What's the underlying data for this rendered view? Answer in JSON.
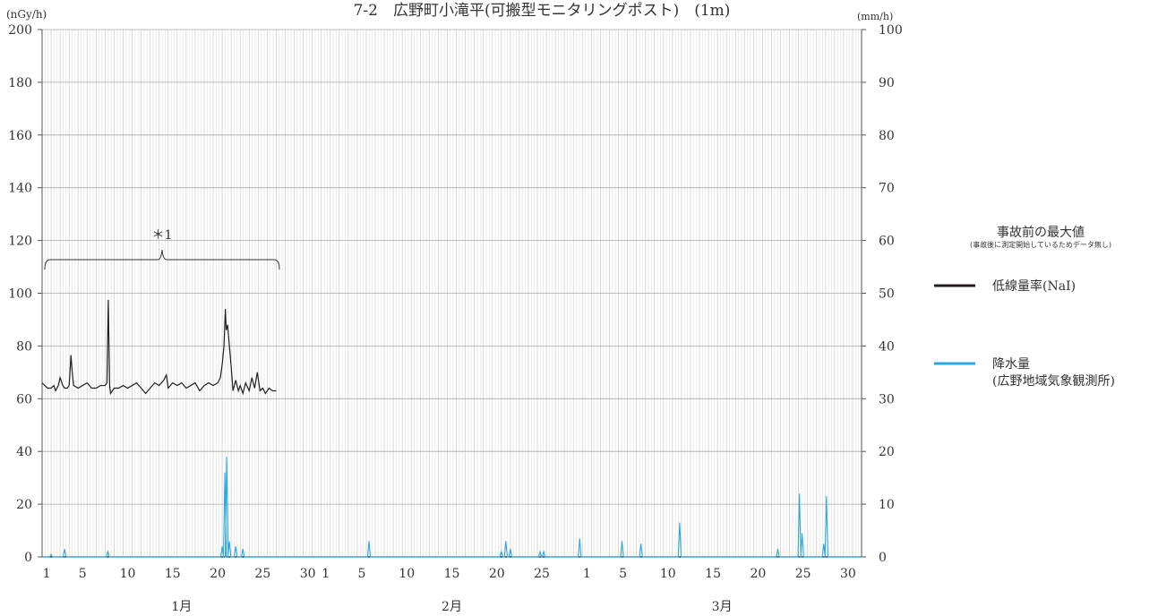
{
  "chart_data": {
    "type": "line",
    "title": "7-2　広野町小滝平(可搬型モニタリングポスト)　(1m)",
    "y_left_unit": "(nGy/h)",
    "y_right_unit": "(mm/h)",
    "y_left_ticks": [
      "0",
      "20",
      "40",
      "60",
      "80",
      "100",
      "120",
      "140",
      "160",
      "180",
      "200"
    ],
    "y_right_ticks": [
      "0",
      "10",
      "20",
      "30",
      "40",
      "50",
      "60",
      "70",
      "80",
      "90",
      "100"
    ],
    "ylim_left": [
      0,
      200
    ],
    "ylim_right": [
      0,
      100
    ],
    "months": [
      {
        "label": "1月",
        "days": 31,
        "tick_labels": [
          "1",
          "5",
          "10",
          "15",
          "20",
          "25",
          "30"
        ]
      },
      {
        "label": "2月",
        "days": 29,
        "tick_labels": [
          "1",
          "5",
          "10",
          "15",
          "20",
          "25"
        ]
      },
      {
        "label": "3月",
        "days": 31,
        "tick_labels": [
          "1",
          "5",
          "10",
          "15",
          "20",
          "25",
          "30"
        ]
      }
    ],
    "annotation": "＊1",
    "legend": {
      "heading": "事故前の最大値",
      "subheading": "(事故後に測定開始しているためデータ無し)",
      "items": [
        {
          "label": "低線量率(NaI)",
          "color": "#231f20"
        },
        {
          "label": "降水量\n(広野地域気象観測所)",
          "color": "#29a8e0"
        }
      ]
    },
    "series": [
      {
        "name": "低線量率(NaI)",
        "axis": "left",
        "color": "#231f20",
        "points": [
          [
            0,
            66
          ],
          [
            0.3,
            65
          ],
          [
            0.6,
            64
          ],
          [
            1,
            64
          ],
          [
            1.3,
            65
          ],
          [
            1.5,
            63
          ],
          [
            1.8,
            65
          ],
          [
            2.0,
            68
          ],
          [
            2.3,
            65
          ],
          [
            2.5,
            64
          ],
          [
            2.8,
            64
          ],
          [
            3.0,
            65
          ],
          [
            3.1,
            70
          ],
          [
            3.2,
            76.5
          ],
          [
            3.35,
            70
          ],
          [
            3.5,
            65
          ],
          [
            4,
            64
          ],
          [
            4.5,
            65
          ],
          [
            5,
            66
          ],
          [
            5.5,
            64
          ],
          [
            6,
            64
          ],
          [
            6.5,
            65
          ],
          [
            7.0,
            65
          ],
          [
            7.2,
            66
          ],
          [
            7.35,
            97.5
          ],
          [
            7.5,
            65
          ],
          [
            7.6,
            62
          ],
          [
            8,
            64
          ],
          [
            8.5,
            64
          ],
          [
            9,
            65
          ],
          [
            9.5,
            64
          ],
          [
            10,
            65
          ],
          [
            10.5,
            66
          ],
          [
            11,
            64
          ],
          [
            11.5,
            62
          ],
          [
            12,
            64
          ],
          [
            12.5,
            66
          ],
          [
            13,
            65
          ],
          [
            13.5,
            67
          ],
          [
            13.8,
            69
          ],
          [
            14,
            64
          ],
          [
            14.5,
            66
          ],
          [
            15,
            65
          ],
          [
            15.5,
            66
          ],
          [
            16,
            64
          ],
          [
            16.5,
            65
          ],
          [
            17,
            66
          ],
          [
            17.5,
            63
          ],
          [
            18,
            65
          ],
          [
            18.5,
            66
          ],
          [
            19,
            65
          ],
          [
            19.5,
            66
          ],
          [
            19.8,
            68
          ],
          [
            20.0,
            73
          ],
          [
            20.2,
            80
          ],
          [
            20.35,
            94
          ],
          [
            20.45,
            86
          ],
          [
            20.6,
            88
          ],
          [
            20.8,
            80
          ],
          [
            21,
            72
          ],
          [
            21.2,
            63
          ],
          [
            21.5,
            67
          ],
          [
            21.8,
            63
          ],
          [
            22,
            65
          ],
          [
            22.3,
            62
          ],
          [
            22.6,
            66
          ],
          [
            23,
            63
          ],
          [
            23.3,
            68
          ],
          [
            23.6,
            64
          ],
          [
            23.9,
            70
          ],
          [
            24.2,
            63
          ],
          [
            24.5,
            64
          ],
          [
            24.8,
            62
          ],
          [
            25.2,
            64
          ],
          [
            25.6,
            63
          ],
          [
            26,
            63
          ]
        ]
      },
      {
        "name": "降水量",
        "axis": "right",
        "color": "#29a8e0",
        "peaks": [
          [
            1.0,
            0.5
          ],
          [
            2.5,
            1.5
          ],
          [
            7.3,
            1
          ],
          [
            20.0,
            2
          ],
          [
            20.3,
            16
          ],
          [
            20.5,
            19
          ],
          [
            20.8,
            3
          ],
          [
            21.5,
            2
          ],
          [
            22.3,
            1.5
          ],
          [
            36.3,
            3
          ],
          [
            51.0,
            1
          ],
          [
            51.5,
            3
          ],
          [
            52.0,
            1.5
          ],
          [
            55.3,
            1
          ],
          [
            55.7,
            1
          ],
          [
            59.7,
            3.5
          ],
          [
            64.4,
            3
          ],
          [
            66.5,
            2.5
          ],
          [
            70.8,
            6.5
          ],
          [
            81.7,
            1.5
          ],
          [
            84.1,
            12
          ],
          [
            84.4,
            4.5
          ],
          [
            86.8,
            2.5
          ],
          [
            87.1,
            11.5
          ]
        ]
      }
    ]
  }
}
